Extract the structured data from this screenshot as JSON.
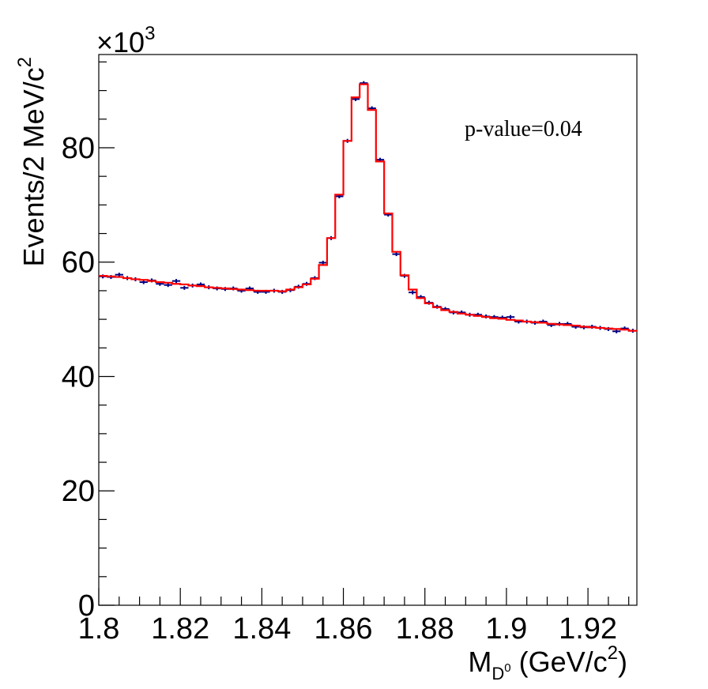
{
  "chart_data": {
    "type": "histogram",
    "ylabel": "Events/2 MeV/c",
    "ylabel_sup": "2",
    "xlabel_main": "M",
    "xlabel_sub": "D",
    "xlabel_subsup": "0",
    "xlabel_unit": "(GeV/c",
    "xlabel_unit_sup": "2",
    "xlabel_unit_close": ")",
    "exponent_base": "×10",
    "exponent_power": "3",
    "annotation": "p-value=0.04",
    "xlim": [
      1.8,
      1.932
    ],
    "ylim": [
      0,
      96.3
    ],
    "y_scale_factor": 1000,
    "x_ticks": [
      "1.8",
      "1.82",
      "1.84",
      "1.86",
      "1.88",
      "1.9",
      "1.92"
    ],
    "y_ticks": [
      "0",
      "20",
      "40",
      "60",
      "80"
    ],
    "bin_width": 0.002,
    "data_color": "#000080",
    "fit_color": "#ff0000",
    "series": [
      {
        "role": "data",
        "x": [
          1.801,
          1.803,
          1.805,
          1.807,
          1.809,
          1.811,
          1.813,
          1.815,
          1.817,
          1.819,
          1.821,
          1.823,
          1.825,
          1.827,
          1.829,
          1.831,
          1.833,
          1.835,
          1.837,
          1.839,
          1.841,
          1.843,
          1.845,
          1.847,
          1.849,
          1.851,
          1.853,
          1.855,
          1.857,
          1.859,
          1.861,
          1.863,
          1.865,
          1.867,
          1.869,
          1.871,
          1.873,
          1.875,
          1.877,
          1.879,
          1.881,
          1.883,
          1.885,
          1.887,
          1.889,
          1.891,
          1.893,
          1.895,
          1.897,
          1.899,
          1.901,
          1.903,
          1.905,
          1.907,
          1.909,
          1.911,
          1.913,
          1.915,
          1.917,
          1.919,
          1.921,
          1.923,
          1.925,
          1.927,
          1.929,
          1.931
        ],
        "y": [
          57.5,
          57.4,
          57.8,
          57.2,
          57.0,
          56.5,
          56.8,
          56.2,
          56.0,
          56.7,
          55.5,
          55.9,
          56.1,
          55.6,
          55.4,
          55.3,
          55.4,
          55.0,
          55.4,
          54.8,
          54.8,
          55.0,
          54.8,
          55.1,
          55.7,
          56.2,
          57.2,
          59.9,
          64.2,
          71.5,
          81.2,
          88.5,
          91.3,
          86.9,
          77.9,
          68.3,
          61.4,
          57.6,
          54.7,
          53.9,
          52.9,
          52.2,
          51.8,
          51.2,
          51.2,
          50.8,
          50.8,
          50.5,
          50.4,
          50.3,
          50.4,
          49.6,
          49.6,
          49.4,
          49.6,
          49.0,
          49.2,
          49.2,
          48.7,
          48.6,
          48.7,
          48.5,
          48.3,
          47.9,
          48.4,
          48.0
        ]
      },
      {
        "role": "fit",
        "x": [
          1.801,
          1.803,
          1.805,
          1.807,
          1.809,
          1.811,
          1.813,
          1.815,
          1.817,
          1.819,
          1.821,
          1.823,
          1.825,
          1.827,
          1.829,
          1.831,
          1.833,
          1.835,
          1.837,
          1.839,
          1.841,
          1.843,
          1.845,
          1.847,
          1.849,
          1.851,
          1.853,
          1.855,
          1.857,
          1.859,
          1.861,
          1.863,
          1.865,
          1.867,
          1.869,
          1.871,
          1.873,
          1.875,
          1.877,
          1.879,
          1.881,
          1.883,
          1.885,
          1.887,
          1.889,
          1.891,
          1.893,
          1.895,
          1.897,
          1.899,
          1.901,
          1.903,
          1.905,
          1.907,
          1.909,
          1.911,
          1.913,
          1.915,
          1.917,
          1.919,
          1.921,
          1.923,
          1.925,
          1.927,
          1.929,
          1.931
        ],
        "y": [
          57.6,
          57.5,
          57.4,
          57.2,
          57.0,
          56.9,
          56.7,
          56.5,
          56.4,
          56.2,
          56.1,
          55.9,
          55.8,
          55.6,
          55.5,
          55.4,
          55.3,
          55.2,
          55.1,
          55.0,
          55.0,
          55.0,
          54.9,
          55.2,
          55.6,
          56.1,
          57.1,
          59.5,
          64.2,
          71.8,
          81.2,
          88.8,
          91.1,
          86.6,
          77.6,
          68.5,
          61.8,
          57.7,
          55.2,
          53.7,
          52.8,
          52.1,
          51.6,
          51.3,
          51.0,
          50.8,
          50.6,
          50.4,
          50.2,
          50.1,
          49.9,
          49.8,
          49.6,
          49.5,
          49.4,
          49.2,
          49.1,
          49.0,
          48.9,
          48.7,
          48.6,
          48.5,
          48.4,
          48.3,
          48.2,
          48.0
        ]
      }
    ]
  }
}
